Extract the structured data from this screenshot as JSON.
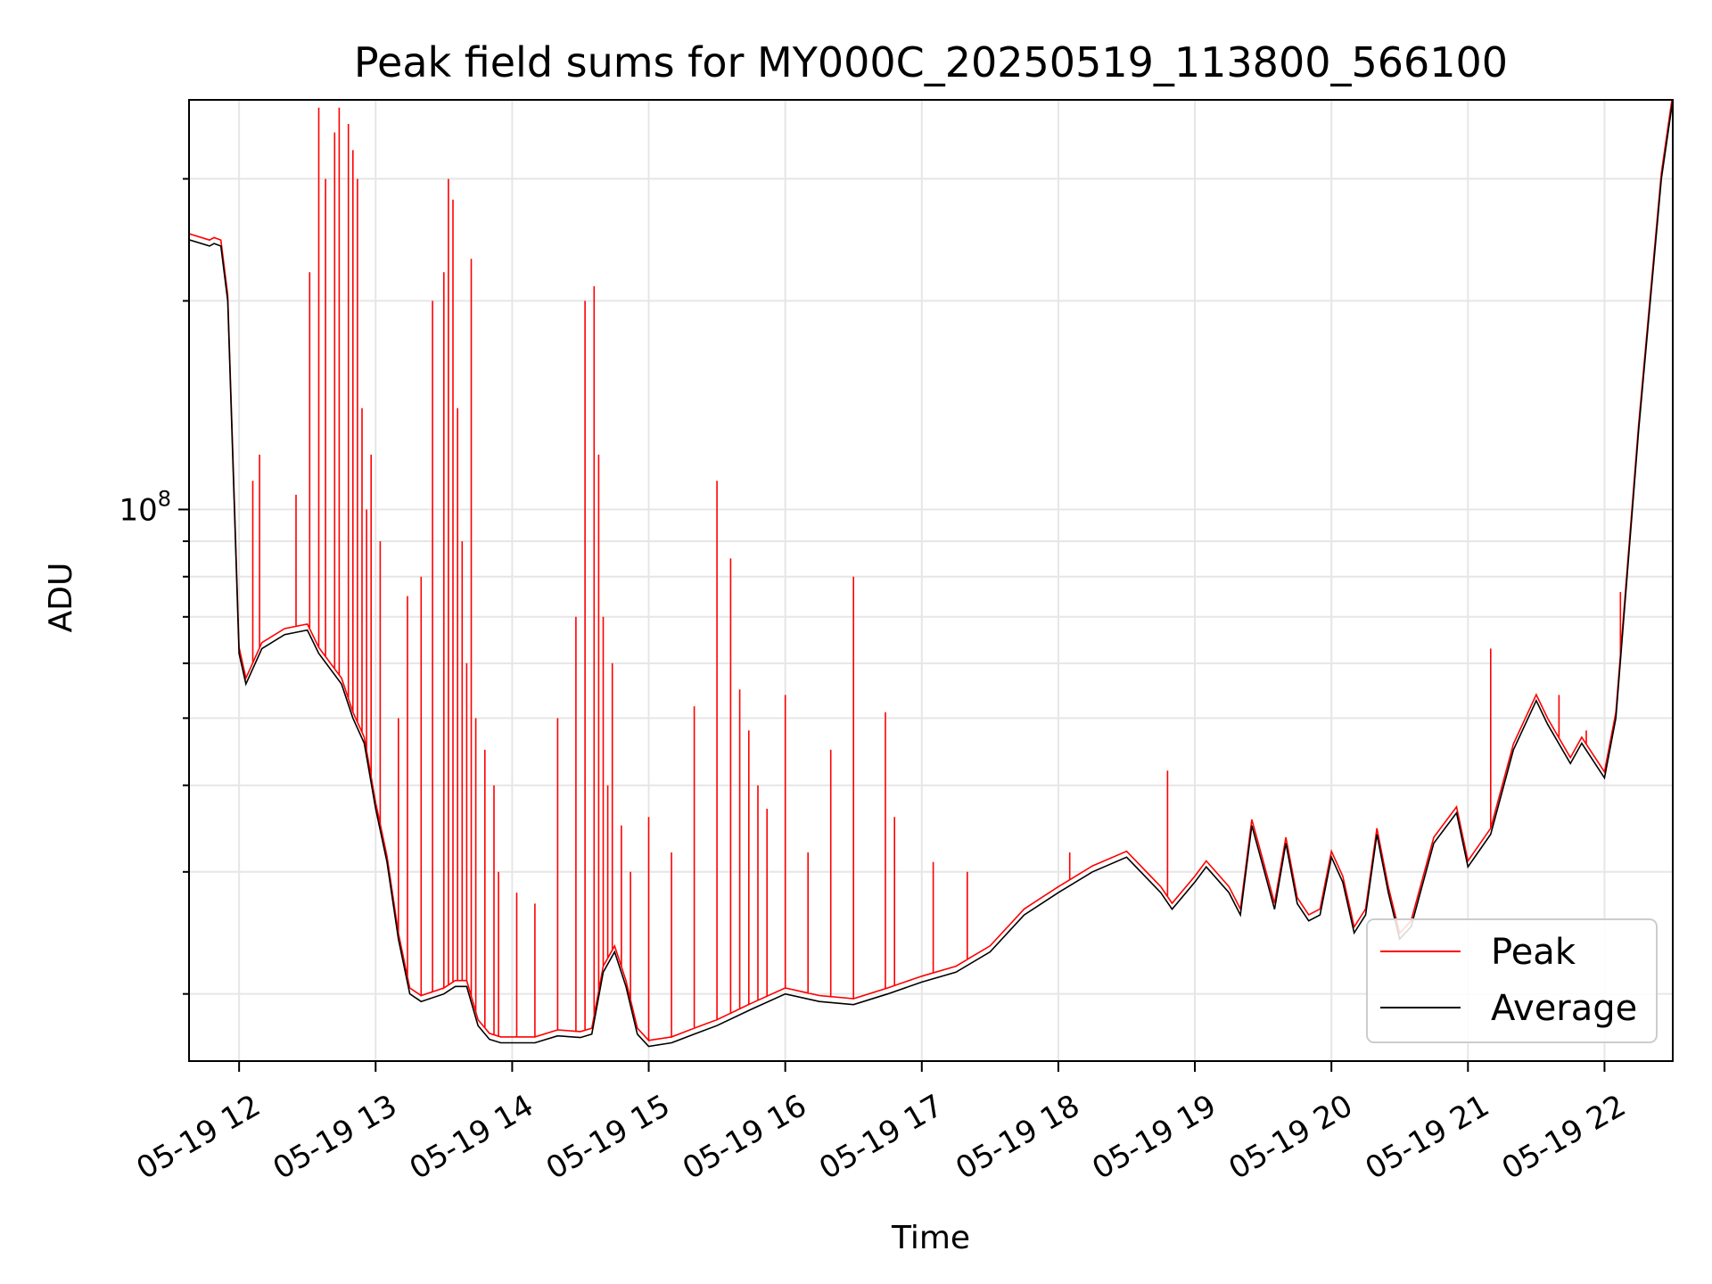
{
  "chart_data": {
    "type": "line",
    "title": "Peak field sums for MY000C_20250519_113800_566100",
    "xlabel": "Time",
    "ylabel": "ADU",
    "yscale": "log",
    "xlim": [
      "05-19 11:38",
      "05-19 22:30"
    ],
    "ylim": [
      16000000,
      390000000
    ],
    "grid": true,
    "legend_position": "lower-right",
    "x_tick_labels": [
      "05-19 12",
      "05-19 13",
      "05-19 14",
      "05-19 15",
      "05-19 16",
      "05-19 17",
      "05-19 18",
      "05-19 19",
      "05-19 20",
      "05-19 21",
      "05-19 22"
    ],
    "y_tick_labels": [
      {
        "base": "10",
        "exp": "8",
        "value": 100000000
      }
    ],
    "series": [
      {
        "name": "Average",
        "color": "#000000",
        "x": [
          "05-19 11:38",
          "05-19 11:47",
          "05-19 11:49",
          "05-19 11:52",
          "05-19 11:55",
          "05-19 12:00",
          "05-19 12:03",
          "05-19 12:10",
          "05-19 12:20",
          "05-19 12:30",
          "05-19 12:35",
          "05-19 12:45",
          "05-19 12:50",
          "05-19 12:55",
          "05-19 13:00",
          "05-19 13:05",
          "05-19 13:10",
          "05-19 13:15",
          "05-19 13:20",
          "05-19 13:30",
          "05-19 13:35",
          "05-19 13:40",
          "05-19 13:45",
          "05-19 13:50",
          "05-19 13:55",
          "05-19 14:00",
          "05-19 14:10",
          "05-19 14:20",
          "05-19 14:30",
          "05-19 14:35",
          "05-19 14:40",
          "05-19 14:45",
          "05-19 14:50",
          "05-19 14:55",
          "05-19 15:00",
          "05-19 15:10",
          "05-19 15:20",
          "05-19 15:30",
          "05-19 15:45",
          "05-19 16:00",
          "05-19 16:15",
          "05-19 16:30",
          "05-19 16:45",
          "05-19 17:00",
          "05-19 17:15",
          "05-19 17:30",
          "05-19 17:45",
          "05-19 18:00",
          "05-19 18:15",
          "05-19 18:30",
          "05-19 18:45",
          "05-19 18:50",
          "05-19 19:00",
          "05-19 19:05",
          "05-19 19:15",
          "05-19 19:20",
          "05-19 19:25",
          "05-19 19:30",
          "05-19 19:35",
          "05-19 19:40",
          "05-19 19:45",
          "05-19 19:50",
          "05-19 19:55",
          "05-19 20:00",
          "05-19 20:05",
          "05-19 20:10",
          "05-19 20:15",
          "05-19 20:20",
          "05-19 20:25",
          "05-19 20:30",
          "05-19 20:35",
          "05-19 20:45",
          "05-19 20:55",
          "05-19 21:00",
          "05-19 21:10",
          "05-19 21:20",
          "05-19 21:30",
          "05-19 21:35",
          "05-19 21:45",
          "05-19 21:50",
          "05-19 22:00",
          "05-19 22:05",
          "05-19 22:15",
          "05-19 22:25",
          "05-19 22:30"
        ],
        "values": [
          245000000,
          240000000,
          242000000,
          240000000,
          200000000,
          62000000,
          56000000,
          63000000,
          66000000,
          67000000,
          62000000,
          56000000,
          50000000,
          46000000,
          37000000,
          31000000,
          24000000,
          20000000,
          19500000,
          20000000,
          20500000,
          20500000,
          18000000,
          17200000,
          17000000,
          17000000,
          17000000,
          17400000,
          17300000,
          17500000,
          21500000,
          23000000,
          20500000,
          17500000,
          16800000,
          17000000,
          17500000,
          18000000,
          19000000,
          20000000,
          19500000,
          19300000,
          20000000,
          20800000,
          21500000,
          23000000,
          26000000,
          28000000,
          30000000,
          31500000,
          28000000,
          26500000,
          29000000,
          30500000,
          28000000,
          26000000,
          35000000,
          30500000,
          26500000,
          33000000,
          27000000,
          25500000,
          26000000,
          31500000,
          29000000,
          24500000,
          26000000,
          34000000,
          28000000,
          24000000,
          25000000,
          33000000,
          36500000,
          30500000,
          34000000,
          45000000,
          53000000,
          49000000,
          43000000,
          46000000,
          41000000,
          50000000,
          130000000,
          300000000,
          390000000
        ]
      },
      {
        "name": "Peak",
        "color": "#ff0000",
        "spike_t": [
          "05-19 12:06",
          "05-19 12:09",
          "05-19 12:25",
          "05-19 12:31",
          "05-19 12:35",
          "05-19 12:38",
          "05-19 12:42",
          "05-19 12:44",
          "05-19 12:48",
          "05-19 12:50",
          "05-19 12:52",
          "05-19 12:54",
          "05-19 12:56",
          "05-19 12:58",
          "05-19 13:02",
          "05-19 13:10",
          "05-19 13:14",
          "05-19 13:20",
          "05-19 13:25",
          "05-19 13:30",
          "05-19 13:32",
          "05-19 13:34",
          "05-19 13:36",
          "05-19 13:38",
          "05-19 13:40",
          "05-19 13:42",
          "05-19 13:44",
          "05-19 13:48",
          "05-19 13:52",
          "05-19 13:54",
          "05-19 14:02",
          "05-19 14:10",
          "05-19 14:20",
          "05-19 14:28",
          "05-19 14:32",
          "05-19 14:36",
          "05-19 14:38",
          "05-19 14:40",
          "05-19 14:42",
          "05-19 14:44",
          "05-19 14:48",
          "05-19 14:52",
          "05-19 15:00",
          "05-19 15:10",
          "05-19 15:20",
          "05-19 15:30",
          "05-19 15:36",
          "05-19 15:40",
          "05-19 15:44",
          "05-19 15:48",
          "05-19 15:52",
          "05-19 16:00",
          "05-19 16:10",
          "05-19 16:20",
          "05-19 16:30",
          "05-19 16:44",
          "05-19 16:48",
          "05-19 17:05",
          "05-19 17:20",
          "05-19 18:05",
          "05-19 18:48",
          "05-19 21:10",
          "05-19 21:40",
          "05-19 21:52",
          "05-19 22:07"
        ],
        "spike_v": [
          110000000,
          120000000,
          105000000,
          220000000,
          380000000,
          300000000,
          350000000,
          380000000,
          360000000,
          330000000,
          300000000,
          140000000,
          100000000,
          120000000,
          90000000,
          50000000,
          75000000,
          80000000,
          200000000,
          220000000,
          300000000,
          280000000,
          140000000,
          90000000,
          60000000,
          230000000,
          50000000,
          45000000,
          40000000,
          30000000,
          28000000,
          27000000,
          50000000,
          70000000,
          200000000,
          210000000,
          120000000,
          70000000,
          40000000,
          60000000,
          35000000,
          30000000,
          36000000,
          32000000,
          52000000,
          110000000,
          85000000,
          55000000,
          48000000,
          40000000,
          37000000,
          54000000,
          32000000,
          45000000,
          80000000,
          51000000,
          36000000,
          31000000,
          30000000,
          32000000,
          42000000,
          63000000,
          54000000,
          48000000,
          76000000
        ]
      }
    ]
  }
}
